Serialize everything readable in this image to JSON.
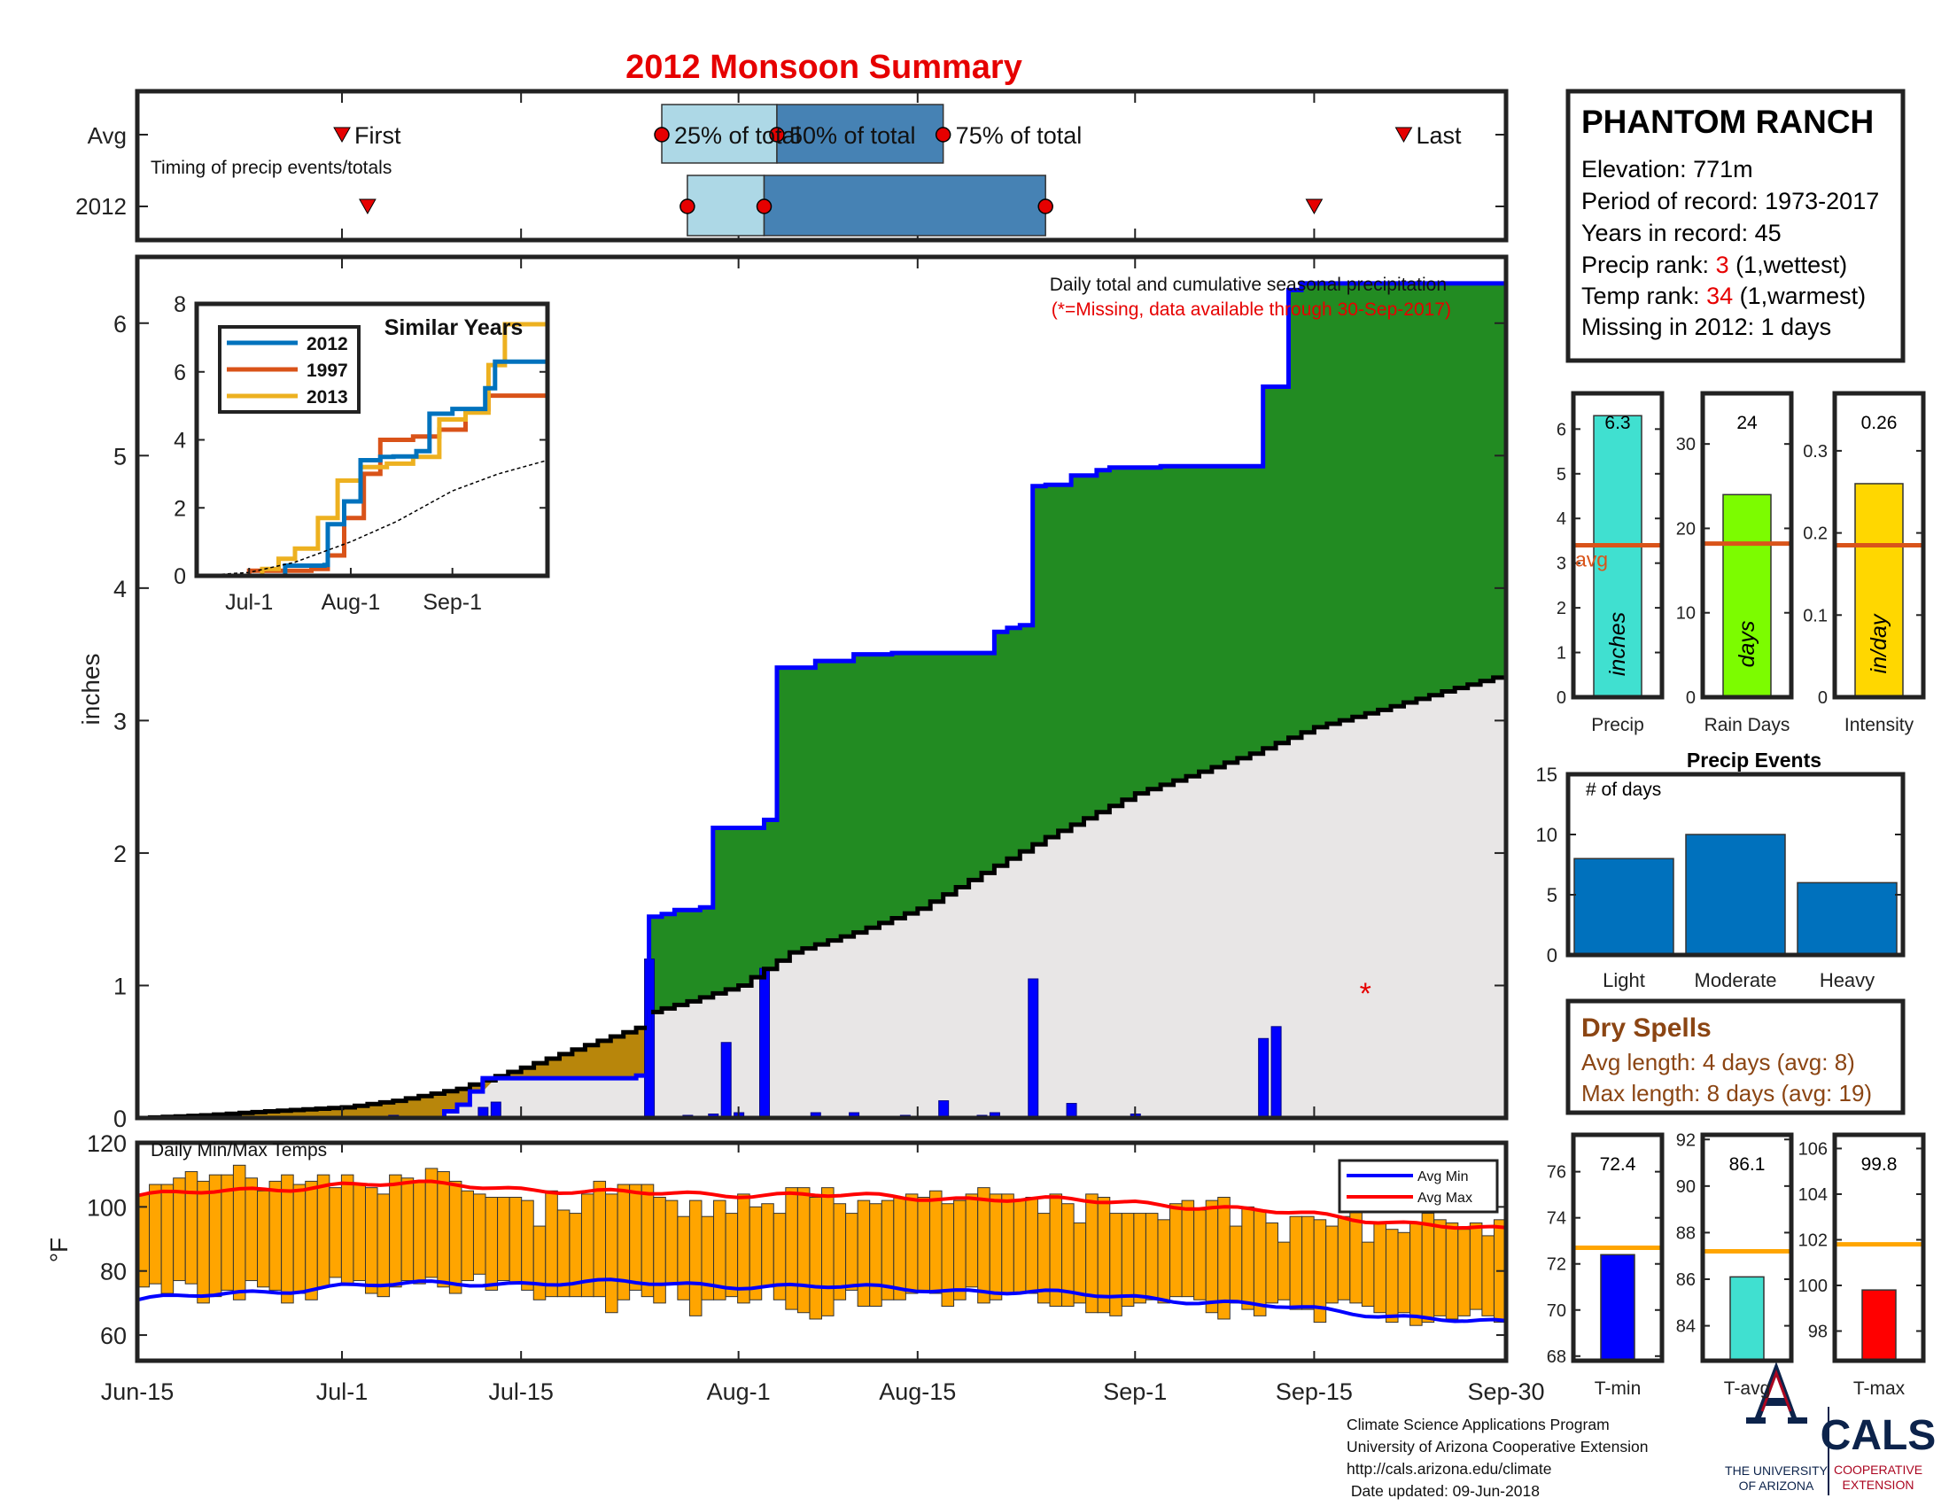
{
  "title": "2012 Monsoon Summary",
  "station": {
    "name": "PHANTOM RANCH",
    "elevation": "Elevation: 771m",
    "period": "Period of record: 1973-2017",
    "years": "Years in record: 45",
    "precip_rank_label": "Precip rank: ",
    "precip_rank_value": "3",
    "precip_rank_note": " (1,wettest)",
    "temp_rank_label": "Temp rank: ",
    "temp_rank_value": "34",
    "temp_rank_note": " (1,warmest)",
    "missing": "Missing in 2012: 1 days"
  },
  "timing": {
    "row_labels": [
      "Avg",
      "2012"
    ],
    "caption": "Timing of precip events/totals",
    "labels": {
      "first": "First",
      "p25": "25% of total",
      "p50": "50% of total",
      "p75": "75% of total",
      "last": "Last"
    },
    "avg": {
      "first": "2012-07-01",
      "p25": "2012-07-26",
      "p50": "2012-08-04",
      "p75": "2012-08-17",
      "last": "2012-09-22"
    },
    "y2012": {
      "first": "2012-07-03",
      "p25": "2012-07-28",
      "p50": "2012-08-03",
      "p75": "2012-08-25",
      "last": "2012-09-15"
    }
  },
  "x_axis": {
    "ticks": [
      "2012-06-15",
      "2012-07-01",
      "2012-07-15",
      "2012-08-01",
      "2012-08-15",
      "2012-09-01",
      "2012-09-15",
      "2012-09-30"
    ],
    "labels": [
      "Jun-15",
      "Jul-1",
      "Jul-15",
      "Aug-1",
      "Aug-15",
      "Sep-1",
      "Sep-15",
      "Sep-30"
    ]
  },
  "precip_panel": {
    "note": "Daily total and cumulative seasonal precipitation",
    "missing_note": "(*=Missing, data available through 30-Sep-2017)",
    "ylabel": "inches",
    "yticks": [
      0,
      1,
      2,
      3,
      4,
      5,
      6
    ],
    "missing_marker": "*",
    "missing_dates": [
      "2012-09-19"
    ]
  },
  "similar_years": {
    "title": "Similar Years",
    "xlabels": [
      "Jul-1",
      "Aug-1",
      "Sep-1"
    ],
    "yticks": [
      0,
      2,
      4,
      6,
      8
    ]
  },
  "temp_panel": {
    "title": "Daily Min/Max Temps",
    "ylabel": "°F",
    "yticks": [
      60,
      80,
      100,
      120
    ],
    "legend": [
      "Avg Min",
      "Avg Max"
    ]
  },
  "precip_summary": {
    "labels": [
      "Precip",
      "Rain Days",
      "Intensity"
    ],
    "values": [
      "6.3",
      "24",
      "0.26"
    ],
    "units": [
      "inches",
      "days",
      "in/day"
    ],
    "avg_label": "avg"
  },
  "precip_events": {
    "title": "Precip Events",
    "ylabel": "# of days",
    "yticks": [
      0,
      5,
      10,
      15
    ]
  },
  "dry_spells": {
    "title": "Dry Spells",
    "avg": "Avg length: 4 days (avg: 8)",
    "max": "Max length: 8 days (avg: 19)"
  },
  "temp_summary": {
    "labels": [
      "T-min",
      "T-avg",
      "T-max"
    ],
    "values": [
      "72.4",
      "86.1",
      "99.8"
    ]
  },
  "footer": {
    "lines": [
      "Climate Science Applications Program",
      "University of Arizona Cooperative Extension",
      "http://cals.arizona.edu/climate",
      " Date updated: 09-Jun-2018"
    ]
  },
  "logos": {
    "ua_line1": "THE UNIVERSITY",
    "ua_line2": "OF ARIZONA",
    "cals": "CALS",
    "cals_line1": "COOPERATIVE",
    "cals_line2": "EXTENSION"
  },
  "colors": {
    "title_red": "#e60000",
    "rank_red": "#e60000",
    "green_fill": "#228b22",
    "blue_line": "#0000ff",
    "avg_fill": "#e8e6e6",
    "brown_fill": "#b8860b",
    "temp_bar": "#ffa500",
    "avg_max_line": "#ff0000",
    "avg_min_line": "#0000ff",
    "precip_bar": "#40e0d0",
    "rain_days_bar": "#7cfc00",
    "intensity_bar": "#ffd700",
    "avg_line": "#d9541a",
    "events_bar": "#0071bd",
    "dry_spell_text": "#8b4513",
    "light_blue": "#add8e6",
    "steel_blue": "#4682b4",
    "tmin_bar": "#0000ff",
    "tavg_bar": "#40e0d0",
    "tmax_bar": "#ff0000",
    "temp_avg_line": "#ffa500"
  },
  "chart_data": [
    {
      "type": "area",
      "id": "cumulative_precip",
      "xlim": [
        "2012-06-15",
        "2012-09-30"
      ],
      "ylim": [
        0,
        6.5
      ],
      "series": [
        {
          "name": "2012",
          "x": [
            "2012-06-15",
            "2012-07-01",
            "2012-07-09",
            "2012-07-10",
            "2012-07-11",
            "2012-07-12",
            "2012-07-22",
            "2012-07-24",
            "2012-07-25",
            "2012-07-26",
            "2012-07-27",
            "2012-07-29",
            "2012-07-30",
            "2012-08-03",
            "2012-08-04",
            "2012-08-07",
            "2012-08-10",
            "2012-08-13",
            "2012-08-14",
            "2012-08-20",
            "2012-08-21",
            "2012-08-22",
            "2012-08-23",
            "2012-08-24",
            "2012-08-25",
            "2012-08-27",
            "2012-08-29",
            "2012-08-30",
            "2012-09-01",
            "2012-09-03",
            "2012-09-10",
            "2012-09-11",
            "2012-09-12",
            "2012-09-13",
            "2012-09-14",
            "2012-09-30"
          ],
          "y": [
            0,
            0,
            0.05,
            0.1,
            0.2,
            0.3,
            0.3,
            0.32,
            1.52,
            1.54,
            1.57,
            1.59,
            2.19,
            2.25,
            3.4,
            3.45,
            3.5,
            3.51,
            3.51,
            3.51,
            3.67,
            3.7,
            3.72,
            4.77,
            4.78,
            4.85,
            4.89,
            4.91,
            4.91,
            4.92,
            4.92,
            5.52,
            5.52,
            6.25,
            6.3,
            6.3
          ]
        },
        {
          "name": "Avg",
          "x": [
            "2012-06-15",
            "2012-06-20",
            "2012-06-25",
            "2012-07-01",
            "2012-07-05",
            "2012-07-10",
            "2012-07-15",
            "2012-07-20",
            "2012-07-24",
            "2012-07-25",
            "2012-07-28",
            "2012-08-01",
            "2012-08-05",
            "2012-08-10",
            "2012-08-15",
            "2012-08-20",
            "2012-08-25",
            "2012-09-01",
            "2012-09-05",
            "2012-09-10",
            "2012-09-15",
            "2012-09-20",
            "2012-09-25",
            "2012-09-30"
          ],
          "y": [
            0,
            0.02,
            0.05,
            0.08,
            0.13,
            0.22,
            0.38,
            0.55,
            0.68,
            0.8,
            0.88,
            1.0,
            1.25,
            1.4,
            1.58,
            1.85,
            2.12,
            2.45,
            2.58,
            2.75,
            2.95,
            3.08,
            3.22,
            3.35
          ]
        }
      ]
    },
    {
      "type": "bar",
      "id": "daily_precip",
      "x": [
        "2012-07-05",
        "2012-07-12",
        "2012-07-13",
        "2012-07-25",
        "2012-07-28",
        "2012-07-30",
        "2012-07-31",
        "2012-08-01",
        "2012-08-03",
        "2012-08-07",
        "2012-08-10",
        "2012-08-14",
        "2012-08-17",
        "2012-08-20",
        "2012-08-21",
        "2012-08-24",
        "2012-08-27",
        "2012-09-01",
        "2012-09-03",
        "2012-09-11",
        "2012-09-12"
      ],
      "values": [
        0.02,
        0.08,
        0.12,
        1.2,
        0.02,
        0.03,
        0.57,
        0.04,
        1.13,
        0.04,
        0.04,
        0.02,
        0.13,
        0.02,
        0.04,
        1.05,
        0.11,
        0.03,
        0.01,
        0.6,
        0.69
      ]
    },
    {
      "type": "line",
      "id": "similar_years",
      "xlim": [
        "2012-06-15",
        "2012-09-30"
      ],
      "ylim": [
        0,
        8
      ],
      "series": [
        {
          "name": "2012",
          "x": [
            "2012-06-15",
            "2012-07-09",
            "2012-07-12",
            "2012-07-24",
            "2012-07-25",
            "2012-07-30",
            "2012-08-04",
            "2012-08-10",
            "2012-08-14",
            "2012-08-21",
            "2012-08-25",
            "2012-09-01",
            "2012-09-11",
            "2012-09-14",
            "2012-09-30"
          ],
          "y": [
            0,
            0,
            0.3,
            0.32,
            1.52,
            2.19,
            3.4,
            3.5,
            3.51,
            3.67,
            4.77,
            4.91,
            5.52,
            6.3,
            6.3
          ]
        },
        {
          "name": "1997",
          "x": [
            "2012-06-15",
            "2012-07-01",
            "2012-07-20",
            "2012-07-25",
            "2012-07-30",
            "2012-08-05",
            "2012-08-10",
            "2012-08-20",
            "2012-08-28",
            "2012-09-05",
            "2012-09-12",
            "2012-09-30"
          ],
          "y": [
            0,
            0.15,
            0.2,
            0.6,
            1.7,
            3.0,
            4.0,
            4.1,
            4.3,
            4.9,
            5.3,
            6.0
          ]
        },
        {
          "name": "2013",
          "x": [
            "2012-06-15",
            "2012-07-05",
            "2012-07-10",
            "2012-07-15",
            "2012-07-22",
            "2012-07-28",
            "2012-08-04",
            "2012-08-12",
            "2012-08-20",
            "2012-08-28",
            "2012-09-05",
            "2012-09-12",
            "2012-09-17",
            "2012-09-30"
          ],
          "y": [
            0,
            0.2,
            0.5,
            0.8,
            1.7,
            2.8,
            3.2,
            3.3,
            3.5,
            4.6,
            4.8,
            6.2,
            7.4,
            7.4
          ]
        },
        {
          "name": "Avg",
          "x": [
            "2012-06-15",
            "2012-07-01",
            "2012-07-15",
            "2012-08-01",
            "2012-08-15",
            "2012-09-01",
            "2012-09-15",
            "2012-09-30"
          ],
          "y": [
            0,
            0.1,
            0.4,
            1.0,
            1.6,
            2.5,
            3.0,
            3.4
          ]
        }
      ]
    },
    {
      "type": "bar",
      "id": "daily_temps",
      "xlim": [
        "2012-06-15",
        "2012-09-30"
      ],
      "ylim": [
        52,
        120
      ],
      "x_start": "2012-06-15",
      "min": [
        75,
        76,
        73,
        77,
        76,
        70,
        72,
        74,
        71,
        77,
        75,
        74,
        70,
        73,
        71,
        75,
        78,
        76,
        77,
        73,
        72,
        75,
        77,
        76,
        78,
        75,
        73,
        77,
        79,
        74,
        77,
        76,
        74,
        71,
        72,
        72,
        72,
        72,
        72,
        67,
        71,
        74,
        72,
        70,
        76,
        71,
        66,
        71,
        71,
        72,
        70,
        71,
        75,
        71,
        68,
        67,
        65,
        66,
        71,
        74,
        69,
        69,
        71,
        71,
        73,
        74,
        73,
        69,
        71,
        75,
        70,
        71,
        73,
        73,
        73,
        70,
        69,
        69,
        70,
        67,
        67,
        66,
        69,
        70,
        71,
        70,
        72,
        72,
        71,
        67,
        65,
        70,
        68,
        66,
        70,
        71,
        68,
        68,
        64,
        70,
        71,
        70,
        69,
        67,
        64,
        67,
        63,
        64,
        66,
        65,
        66,
        68,
        66,
        64
      ],
      "max": [
        104,
        107,
        107,
        109,
        111,
        108,
        110,
        110,
        113,
        109,
        105,
        108,
        110,
        107,
        108,
        110,
        106,
        110,
        107,
        106,
        104,
        110,
        109,
        108,
        112,
        111,
        108,
        105,
        104,
        103,
        103,
        103,
        102,
        94,
        105,
        99,
        98,
        104,
        108,
        104,
        107,
        107,
        107,
        103,
        102,
        97,
        102,
        97,
        102,
        98,
        104,
        100,
        101,
        98,
        106,
        106,
        103,
        106,
        101,
        98,
        102,
        101,
        102,
        103,
        104,
        103,
        105,
        101,
        102,
        104,
        106,
        104,
        104,
        102,
        103,
        98,
        104,
        101,
        95,
        104,
        103,
        98,
        98,
        98,
        98,
        96,
        101,
        102,
        99,
        102,
        103,
        94,
        100,
        99,
        95,
        89,
        97,
        97,
        96,
        94,
        97,
        99,
        89,
        95,
        93,
        92,
        95,
        98,
        96,
        95,
        93,
        95,
        91,
        96
      ]
    },
    {
      "type": "line",
      "id": "avg_temps",
      "series": [
        {
          "name": "Avg Max",
          "x": [
            "2012-06-15",
            "2012-06-25",
            "2012-07-01",
            "2012-07-10",
            "2012-07-20",
            "2012-08-01",
            "2012-08-15",
            "2012-09-01",
            "2012-09-15",
            "2012-09-30"
          ],
          "y": [
            103.5,
            105.5,
            107,
            107,
            104.5,
            104,
            103,
            101.5,
            97.5,
            92.5
          ]
        },
        {
          "name": "Avg Min",
          "x": [
            "2012-06-15",
            "2012-06-25",
            "2012-07-01",
            "2012-07-10",
            "2012-07-20",
            "2012-08-01",
            "2012-08-15",
            "2012-09-01",
            "2012-09-15",
            "2012-09-30"
          ],
          "y": [
            71,
            73.5,
            75.5,
            76,
            76.5,
            75.5,
            74.5,
            72,
            68,
            63.5
          ]
        }
      ]
    },
    {
      "type": "bar",
      "id": "precip_summary",
      "panels": [
        {
          "name": "Precip",
          "value": 6.3,
          "avg": 3.4,
          "ylim": [
            0,
            6.8
          ],
          "yticks": [
            0,
            1,
            2,
            3,
            4,
            5,
            6
          ]
        },
        {
          "name": "Rain Days",
          "value": 24,
          "avg": 18.2,
          "ylim": [
            0,
            36
          ],
          "yticks": [
            0,
            10,
            20,
            30
          ]
        },
        {
          "name": "Intensity",
          "value": 0.26,
          "avg": 0.185,
          "ylim": [
            0,
            0.37
          ],
          "yticks": [
            0,
            0.1,
            0.2,
            0.3
          ]
        }
      ]
    },
    {
      "type": "bar",
      "id": "precip_events",
      "categories": [
        "Light",
        "Moderate",
        "Heavy"
      ],
      "values": [
        8,
        10,
        6
      ],
      "ylim": [
        0,
        15
      ]
    },
    {
      "type": "bar",
      "id": "temp_summary",
      "panels": [
        {
          "name": "T-min",
          "value": 72.4,
          "avg": 72.7,
          "ylim": [
            67.8,
            77.6
          ],
          "yticks": [
            68,
            70,
            72,
            74,
            76
          ]
        },
        {
          "name": "T-avg",
          "value": 86.1,
          "avg": 87.2,
          "ylim": [
            82.5,
            92.2
          ],
          "yticks": [
            84,
            86,
            88,
            90,
            92
          ]
        },
        {
          "name": "T-max",
          "value": 99.8,
          "avg": 101.8,
          "ylim": [
            96.7,
            106.6
          ],
          "yticks": [
            98,
            100,
            102,
            104,
            106
          ]
        }
      ]
    }
  ]
}
